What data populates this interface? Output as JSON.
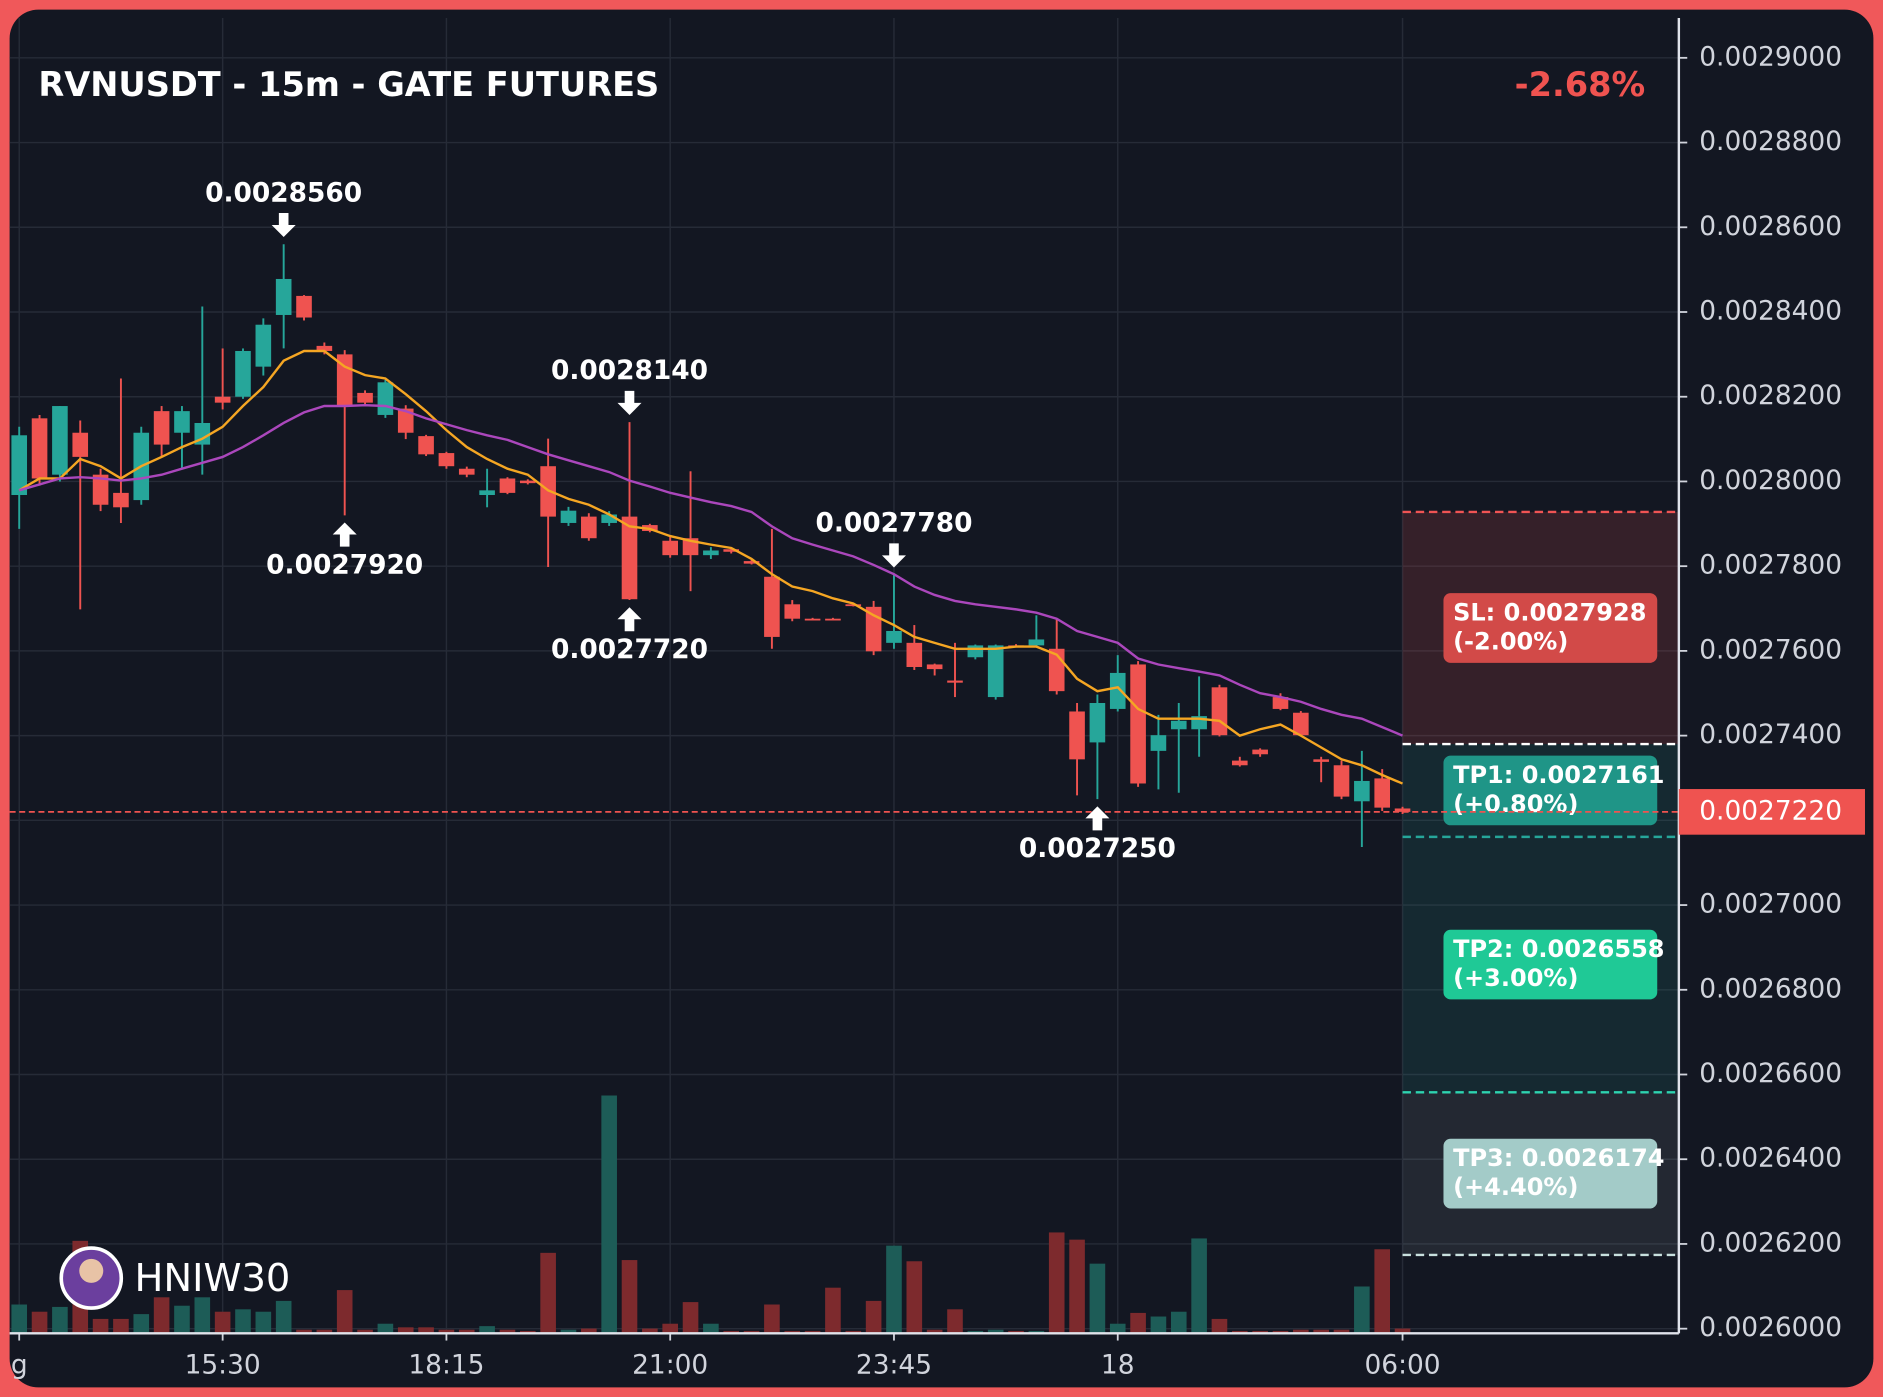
{
  "chart_data": {
    "type": "candlestick",
    "title": "RVNUSDT - 15m - GATE FUTURES",
    "change": "-2.68%",
    "watermark": "HNIW30",
    "up_color": "#26a69a",
    "down_color": "#ef5350",
    "up_volume_color": "#1d5c57",
    "down_volume_color": "#7d2a2d",
    "ylim": [
      0.0025989,
      0.0029094
    ],
    "yticks": [
      {
        "value": 0.0026,
        "label": "0.0026000"
      },
      {
        "value": 0.00262,
        "label": "0.0026200"
      },
      {
        "value": 0.00264,
        "label": "0.0026400"
      },
      {
        "value": 0.00266,
        "label": "0.0026600"
      },
      {
        "value": 0.00268,
        "label": "0.0026800"
      },
      {
        "value": 0.0027,
        "label": "0.0027000"
      },
      {
        "value": 0.00272,
        "label": "0.0027200"
      },
      {
        "value": 0.00274,
        "label": "0.0027400"
      },
      {
        "value": 0.00276,
        "label": "0.0027600"
      },
      {
        "value": 0.00278,
        "label": "0.0027800"
      },
      {
        "value": 0.0028,
        "label": "0.0028000"
      },
      {
        "value": 0.00282,
        "label": "0.0028200"
      },
      {
        "value": 0.00284,
        "label": "0.0028400"
      },
      {
        "value": 0.00286,
        "label": "0.0028600"
      },
      {
        "value": 0.00288,
        "label": "0.0028800"
      },
      {
        "value": 0.0029,
        "label": "0.0029000"
      }
    ],
    "xticks": [
      {
        "value": 0,
        "label": "g"
      },
      {
        "value": 10,
        "label": "15:30"
      },
      {
        "value": 21,
        "label": "18:15"
      },
      {
        "value": 32,
        "label": "21:00"
      },
      {
        "value": 43,
        "label": "23:45"
      },
      {
        "value": 54,
        "label": "18"
      },
      {
        "value": 68,
        "label": "06:00"
      }
    ],
    "grid": true,
    "open": [
      0.0027968,
      0.0028149,
      0.0028016,
      0.0028115,
      0.0028016,
      0.0027973,
      0.0027956,
      0.0028166,
      0.0028115,
      0.0028087,
      0.00282,
      0.00282,
      0.0028271,
      0.0028393,
      0.0028438,
      0.002832,
      0.00283,
      0.0028209,
      0.0028157,
      0.0028172,
      0.0028107,
      0.0028067,
      0.002803,
      0.0027968,
      0.0028007,
      0.0028002,
      0.0028036,
      0.0027902,
      0.0027917,
      0.0027902,
      0.0027917,
      0.0027897,
      0.002786,
      0.0027866,
      0.0027826,
      0.002784,
      0.0027812,
      0.0027775,
      0.002771,
      0.0027676,
      0.0027676,
      0.002771,
      0.0027704,
      0.0027619,
      0.0027619,
      0.0027568,
      0.002753,
      0.0027585,
      0.0027491,
      0.0027613,
      0.0027613,
      0.0027605,
      0.0027457,
      0.0027384,
      0.0027463,
      0.0027568,
      0.0027364,
      0.0027415,
      0.0027415,
      0.0027514,
      0.0027341,
      0.0027367,
      0.0027491,
      0.0027454,
      0.0027344,
      0.002733,
      0.0027245,
      0.0027299,
      0.0027228
    ],
    "high": [
      0.0028129,
      0.0028157,
      0.0028178,
      0.0028144,
      0.002803,
      0.0028243,
      0.0028129,
      0.0028178,
      0.0028178,
      0.0028413,
      0.0028314,
      0.0028314,
      0.0028385,
      0.002856,
      0.002844,
      0.0028328,
      0.002831,
      0.0028215,
      0.002824,
      0.002818,
      0.002811,
      0.002807,
      0.0028035,
      0.002803,
      0.002801,
      0.0028005,
      0.0028101,
      0.002794,
      0.0027925,
      0.002793,
      0.002814,
      0.00279,
      0.002787,
      0.0028024,
      0.0027845,
      0.0027843,
      0.0027815,
      0.0027888,
      0.002772,
      0.0027678,
      0.0027678,
      0.0027712,
      0.0027718,
      0.002778,
      0.0027661,
      0.002757,
      0.0027619,
      0.0027615,
      0.0027615,
      0.0027616,
      0.0027684,
      0.0027676,
      0.0027477,
      0.0027497,
      0.002759,
      0.0027576,
      0.0027449,
      0.0027477,
      0.002754,
      0.002752,
      0.002735,
      0.002737,
      0.00275,
      0.0027458,
      0.002735,
      0.0027341,
      0.0027364,
      0.0027321,
      0.0027232
    ],
    "low": [
      0.0027888,
      0.002799,
      0.0028,
      0.0027698,
      0.002793,
      0.0027902,
      0.0027945,
      0.0028058,
      0.002803,
      0.0028016,
      0.002817,
      0.0028195,
      0.002825,
      0.0028314,
      0.002838,
      0.00283,
      0.002792,
      0.002818,
      0.002815,
      0.00281,
      0.002806,
      0.002803,
      0.002801,
      0.0027939,
      0.002797,
      0.0027993,
      0.0027798,
      0.0027895,
      0.002786,
      0.0027895,
      0.002772,
      0.002788,
      0.002782,
      0.0027741,
      0.0027817,
      0.002783,
      0.0027804,
      0.0027605,
      0.002767,
      0.0027672,
      0.0027672,
      0.0027705,
      0.002759,
      0.0027605,
      0.0027555,
      0.0027542,
      0.0027491,
      0.002758,
      0.0027485,
      0.0027608,
      0.002761,
      0.0027497,
      0.0027259,
      0.002725,
      0.0027457,
      0.0027279,
      0.0027273,
      0.0027265,
      0.002735,
      0.0027398,
      0.0027327,
      0.002735,
      0.002746,
      0.0027398,
      0.002729,
      0.002725,
      0.0027137,
      0.0027222,
      0.0027215
    ],
    "close": [
      0.0028109,
      0.0028007,
      0.0028178,
      0.0028058,
      0.0027945,
      0.0027939,
      0.0028115,
      0.0028087,
      0.0028166,
      0.0028138,
      0.0028186,
      0.0028308,
      0.002837,
      0.0028478,
      0.0028387,
      0.0028308,
      0.002818,
      0.0028186,
      0.0028234,
      0.0028115,
      0.0028064,
      0.0028036,
      0.0028016,
      0.0027979,
      0.0027973,
      0.0027996,
      0.0027917,
      0.0027931,
      0.0027866,
      0.0027922,
      0.0027722,
      0.0027883,
      0.0027826,
      0.0027826,
      0.0027837,
      0.0027834,
      0.0027806,
      0.0027633,
      0.0027676,
      0.0027673,
      0.0027673,
      0.0027707,
      0.0027599,
      0.0027647,
      0.0027562,
      0.0027557,
      0.0027525,
      0.0027613,
      0.0027613,
      0.002761,
      0.0027627,
      0.0027505,
      0.0027344,
      0.0027477,
      0.0027548,
      0.0027287,
      0.0027401,
      0.0027435,
      0.0027446,
      0.0027401,
      0.002733,
      0.0027356,
      0.0027463,
      0.0027401,
      0.0027338,
      0.0027256,
      0.0027293,
      0.002723,
      0.002722
    ],
    "volume": [
      24,
      18,
      22,
      77,
      12,
      12,
      16,
      30,
      23,
      30,
      18,
      20,
      18,
      27,
      3,
      3,
      36,
      3,
      8,
      5,
      5,
      3,
      3,
      6,
      3,
      2,
      67,
      3,
      4,
      198,
      61,
      4,
      8,
      26,
      8,
      2,
      2,
      24,
      2,
      2,
      38,
      2,
      27,
      73,
      60,
      3,
      20,
      2,
      3,
      2,
      2,
      84,
      78,
      58,
      8,
      17,
      14,
      18,
      79,
      12,
      2,
      2,
      2,
      3,
      3,
      3,
      39,
      70,
      4
    ],
    "series": [
      {
        "color": "#f5a623",
        "values": [
          0.0027979,
          0.0028007,
          0.0028007,
          0.0028053,
          0.0028036,
          0.0028007,
          0.0028036,
          0.0028058,
          0.0028081,
          0.0028101,
          0.0028129,
          0.0028178,
          0.0028223,
          0.0028285,
          0.0028308,
          0.0028308,
          0.0028271,
          0.0028251,
          0.0028243,
          0.0028206,
          0.0028166,
          0.0028121,
          0.0028081,
          0.0028053,
          0.002803,
          0.0028016,
          0.0027979,
          0.0027959,
          0.0027945,
          0.0027922,
          0.0027894,
          0.0027888,
          0.0027871,
          0.002786,
          0.0027851,
          0.0027843,
          0.0027817,
          0.0027781,
          0.0027752,
          0.0027741,
          0.0027724,
          0.0027712,
          0.0027684,
          0.0027661,
          0.0027633,
          0.0027619,
          0.0027605,
          0.0027605,
          0.0027605,
          0.002761,
          0.002761,
          0.0027591,
          0.0027534,
          0.0027505,
          0.0027514,
          0.0027463,
          0.002744,
          0.002744,
          0.002744,
          0.0027435,
          0.00274,
          0.0027415,
          0.0027426,
          0.00274,
          0.0027372,
          0.0027344,
          0.002733,
          0.0027307,
          0.0027287
        ]
      },
      {
        "color": "#ab47bc",
        "values": [
          0.0027979,
          0.0027993,
          0.0028007,
          0.002801,
          0.0028007,
          0.0028002,
          0.0028007,
          0.0028016,
          0.002803,
          0.0028044,
          0.0028058,
          0.0028081,
          0.0028109,
          0.0028138,
          0.0028163,
          0.0028178,
          0.0028178,
          0.002818,
          0.0028178,
          0.0028166,
          0.0028149,
          0.0028135,
          0.0028121,
          0.0028109,
          0.0028098,
          0.0028081,
          0.0028064,
          0.002805,
          0.0028036,
          0.0028022,
          0.0028002,
          0.0027988,
          0.0027973,
          0.0027962,
          0.0027951,
          0.0027942,
          0.0027928,
          0.0027894,
          0.0027866,
          0.0027851,
          0.0027837,
          0.0027823,
          0.0027803,
          0.0027781,
          0.0027752,
          0.0027732,
          0.0027718,
          0.002771,
          0.0027704,
          0.0027698,
          0.002769,
          0.0027676,
          0.0027647,
          0.0027633,
          0.0027619,
          0.0027582,
          0.0027568,
          0.0027559,
          0.0027551,
          0.0027542,
          0.002752,
          0.00275,
          0.0027491,
          0.002748,
          0.0027463,
          0.0027449,
          0.002744,
          0.002742,
          0.00274
        ]
      }
    ],
    "annotations": [
      {
        "candle": 13,
        "value": 0.002856,
        "label": "0.0028560",
        "side": "above"
      },
      {
        "candle": 16,
        "value": 0.002792,
        "label": "0.0027920",
        "side": "below"
      },
      {
        "candle": 30,
        "value": 0.002814,
        "label": "0.0028140",
        "side": "above"
      },
      {
        "candle": 30,
        "value": 0.002772,
        "label": "0.0027720",
        "side": "below"
      },
      {
        "candle": 43,
        "value": 0.002778,
        "label": "0.0027780",
        "side": "above"
      },
      {
        "candle": 53,
        "value": 0.002725,
        "label": "0.0027250",
        "side": "below"
      }
    ],
    "current_price": {
      "value": 0.002722,
      "label": "0.0027220",
      "color": "#ef5350"
    },
    "entry": {
      "value": 0.002738,
      "color": "#ffffff"
    },
    "levels": [
      {
        "value": 0.0027928,
        "label": [
          "SL: 0.0027928",
          "(-2.00%)"
        ],
        "line_color": "#f05454",
        "box_color": "#d24a48",
        "zone_color": "rgba(239,83,80,0.16)"
      },
      {
        "value": 0.0027161,
        "label": [
          "TP1: 0.0027161",
          "(+0.80%)"
        ],
        "line_color": "#26a69a",
        "box_color": "#1f9587",
        "zone_color": "rgba(38,166,154,0.13)"
      },
      {
        "value": 0.0026558,
        "label": [
          "TP2: 0.0026558",
          "(+3.00%)"
        ],
        "line_color": "#2ed3b0",
        "box_color": "#1fc996",
        "zone_color": "rgba(38,166,154,0.13)"
      },
      {
        "value": 0.0026174,
        "label": [
          "TP3: 0.0026174",
          "(+4.40%)"
        ],
        "line_color": "#c8e0de",
        "box_color": "#a3cbc8",
        "zone_color": "rgba(200,220,222,0.09)"
      }
    ]
  }
}
